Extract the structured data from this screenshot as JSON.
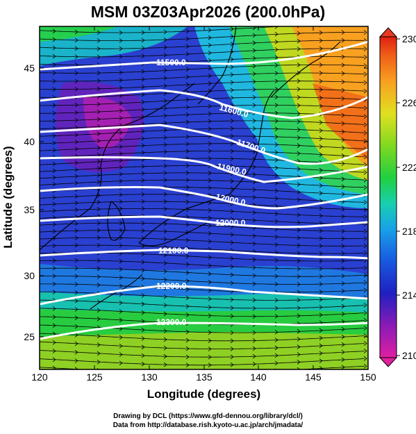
{
  "title": "MSM 03Z03Apr2026 (200.0hPa)",
  "xlabel": "Longitude (degrees)",
  "ylabel": "Latitude  (degrees)",
  "credit_line1": "Drawing by DCL (https://www.gfd-dennou.org/library/dcl/)",
  "credit_line2": "Data from http://database.rish.kyoto-u.ac.jp/arch/jmadata/",
  "map": {
    "lon_range": [
      120,
      150
    ],
    "lat_range": [
      22.4,
      47.6
    ],
    "x_ticks": [
      "120",
      "125",
      "130",
      "135",
      "140",
      "145",
      "150"
    ],
    "y_ticks": [
      "25",
      "30",
      "35",
      "40",
      "45"
    ],
    "colorbar_ticks": [
      "210",
      "214",
      "218",
      "222",
      "226",
      "230"
    ],
    "colorbar_range": [
      210,
      230
    ],
    "colormap": [
      "#e020a0",
      "#8a1ab8",
      "#2020c0",
      "#1858e0",
      "#18b0e8",
      "#18d890",
      "#28d028",
      "#98d820",
      "#e8e020",
      "#f8a020",
      "#f06018",
      "#e02010"
    ],
    "contour_labels": [
      "11500.0",
      "11600.0",
      "11700.0",
      "11800.0",
      "11900.0",
      "12000.0",
      "12100.0",
      "12200.0",
      "12300.0"
    ],
    "field": "temperature shading, geopotential height contours, wind vectors"
  }
}
